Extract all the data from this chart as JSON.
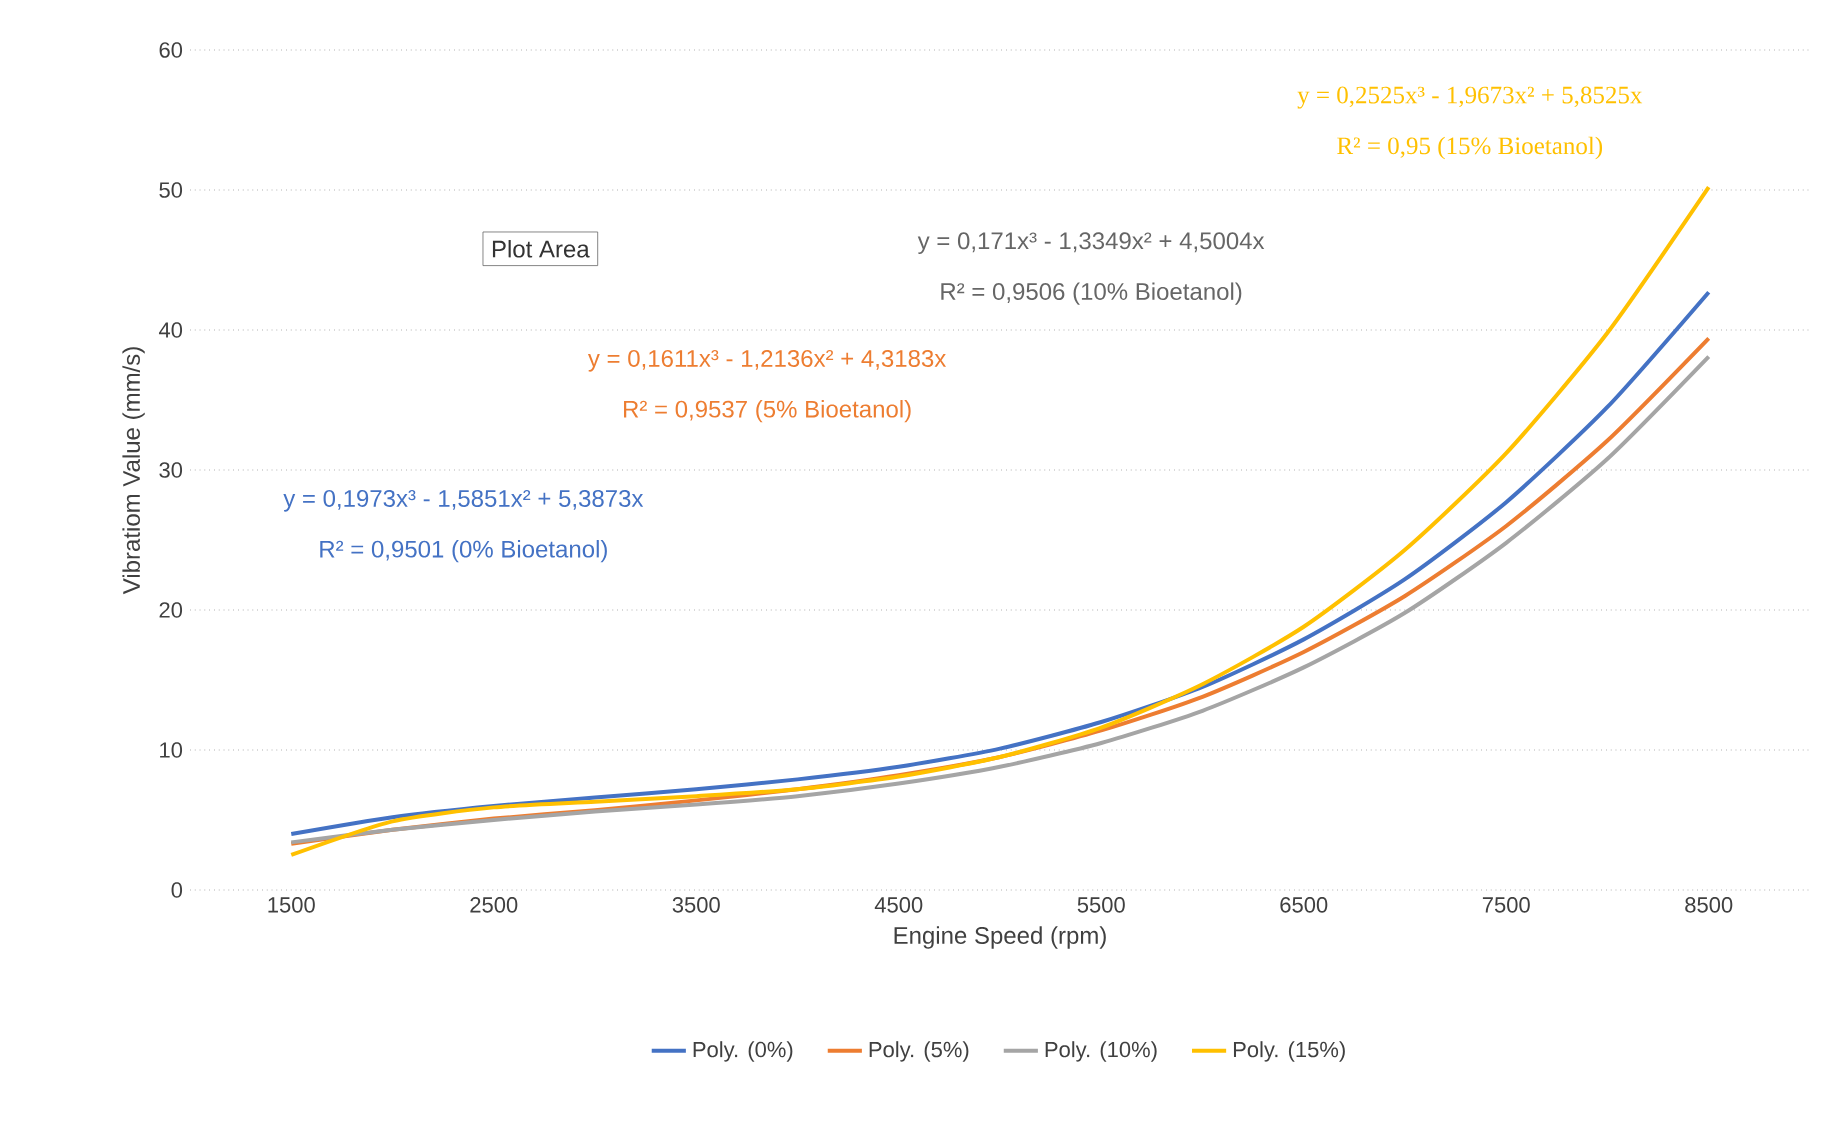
{
  "chart_data": {
    "type": "line",
    "xlabel": "Engine Speed (rpm)",
    "ylabel": "Vibratiom Value (mm/s)",
    "x": [
      1500,
      2000,
      2500,
      3000,
      3500,
      4000,
      4500,
      5000,
      5500,
      6000,
      6500,
      7000,
      7500,
      8000,
      8500
    ],
    "xlim": [
      1000,
      9000
    ],
    "xticks": [
      1500,
      2500,
      3500,
      4500,
      5500,
      6500,
      7500,
      8500
    ],
    "ylim": [
      0,
      60
    ],
    "yticks": [
      0,
      10,
      20,
      30,
      40,
      50,
      60
    ],
    "grid": "y",
    "legend": "bottom",
    "marker": "none",
    "line_style": "solid",
    "series": [
      {
        "name": "Poly. (0%)",
        "color": "#4472c4",
        "values": [
          4.0,
          5.2,
          6.0,
          6.6,
          7.2,
          7.9,
          8.8,
          10.1,
          12.0,
          14.5,
          17.9,
          22.2,
          27.7,
          34.5,
          42.7
        ]
      },
      {
        "name": "Poly. (5%)",
        "color": "#ed7d31",
        "values": [
          3.3,
          4.3,
          5.1,
          5.7,
          6.4,
          7.2,
          8.2,
          9.5,
          11.4,
          13.8,
          17.0,
          21.0,
          26.0,
          32.1,
          39.4
        ]
      },
      {
        "name": "Poly. (10%)",
        "color": "#a5a5a5",
        "values": [
          3.4,
          4.3,
          5.0,
          5.6,
          6.1,
          6.7,
          7.6,
          8.8,
          10.5,
          12.8,
          15.9,
          19.8,
          24.8,
          30.8,
          38.1
        ]
      },
      {
        "name": "Poly. (15%)",
        "color": "#ffc000",
        "values": [
          2.5,
          4.9,
          5.9,
          6.3,
          6.7,
          7.2,
          8.1,
          9.5,
          11.6,
          14.7,
          18.8,
          24.3,
          31.2,
          39.8,
          50.2
        ]
      }
    ],
    "annotations": [
      "y = 0,1973x³ - 1,5851x² + 5,3873x",
      "R² = 0,9501 (0% Bioetanol)",
      "y = 0,1611x³ - 1,2136x² + 4,3183x",
      "R² = 0,9537 (5% Bioetanol)",
      "y = 0,171x³ - 1,3349x² + 4,5004x",
      "R² = 0,9506 (10% Bioetanol)",
      "y = 0,2525x³ - 1,9673x² + 5,8525x",
      "R² = 0,95 (15% Bioetanol)",
      "Plot Area"
    ]
  }
}
